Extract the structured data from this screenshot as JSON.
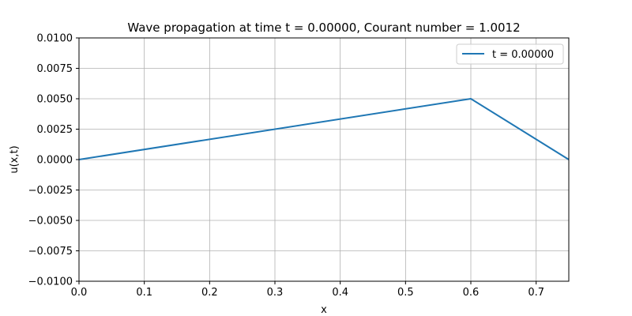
{
  "chart_data": {
    "type": "line",
    "title": "Wave propagation at time t = 0.00000, Courant number = 1.0012",
    "xlabel": "x",
    "ylabel": "u(x,t)",
    "xlim": [
      0.0,
      0.75
    ],
    "ylim": [
      -0.01,
      0.01
    ],
    "xticks": [
      0.0,
      0.1,
      0.2,
      0.3,
      0.4,
      0.5,
      0.6,
      0.7
    ],
    "xtick_labels": [
      "0.0",
      "0.1",
      "0.2",
      "0.3",
      "0.4",
      "0.5",
      "0.6",
      "0.7"
    ],
    "yticks": [
      0.01,
      0.0075,
      0.005,
      0.0025,
      0.0,
      -0.0025,
      -0.005,
      -0.0075,
      -0.01
    ],
    "ytick_labels": [
      "0.0100",
      "0.0075",
      "0.0050",
      "0.0025",
      "0.0000",
      "−0.0025",
      "−0.0050",
      "−0.0075",
      "−0.0100"
    ],
    "grid": true,
    "legend_position": "top-right",
    "series": [
      {
        "name": "t = 0.00000",
        "color": "#1f77b4",
        "x": [
          0.0,
          0.6,
          0.75
        ],
        "y": [
          0.0,
          0.005,
          0.0
        ]
      }
    ]
  }
}
